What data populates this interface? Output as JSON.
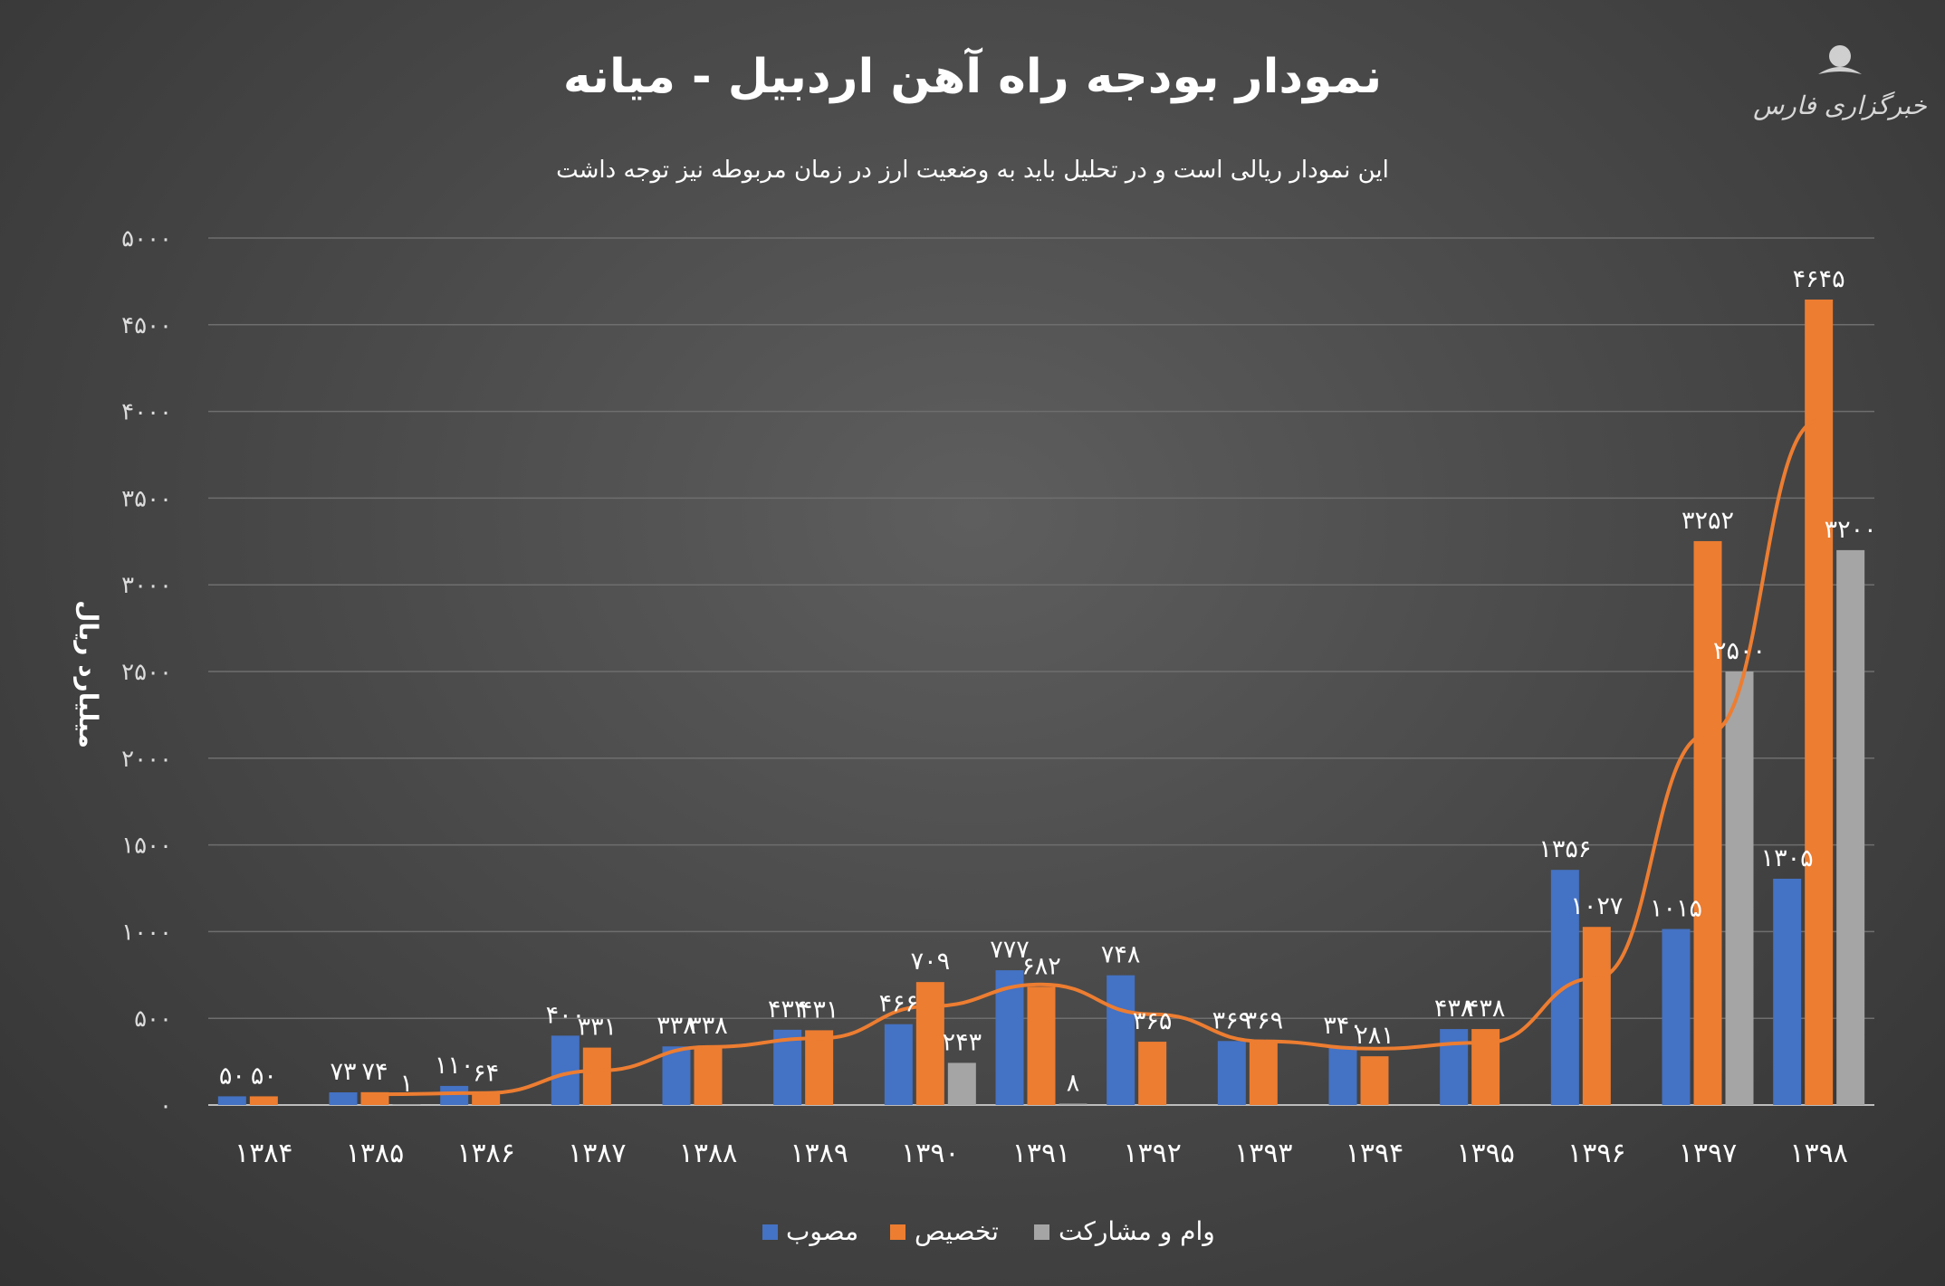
{
  "title": "نمودار بودجه راه آهن اردبیل - میانه",
  "subtitle": "این نمودار ریالی است و در تحلیل باید به وضعیت ارز در زمان مربوطه نیز توجه داشت",
  "logo_text": "خبرگزاری فارس",
  "colors": {
    "approved": "#4472c4",
    "allocated": "#ed7d31",
    "loan": "#a5a5a5",
    "trend": "#ed7d31",
    "grid": "#6e6e6e"
  },
  "chart_data": {
    "type": "bar",
    "title": "نمودار بودجه راه آهن اردبیل - میانه",
    "ylabel": "میلیارد ریال",
    "xlabel": "",
    "ylim": [
      0,
      5000
    ],
    "ytick_values": [
      0,
      500,
      1000,
      1500,
      2000,
      2500,
      3000,
      3500,
      4000,
      4500,
      5000
    ],
    "ytick_labels": [
      "۰",
      "۵۰۰",
      "۱۰۰۰",
      "۱۵۰۰",
      "۲۰۰۰",
      "۲۵۰۰",
      "۳۰۰۰",
      "۳۵۰۰",
      "۴۰۰۰",
      "۴۵۰۰",
      "۵۰۰۰"
    ],
    "categories": [
      "۱۳۸۴",
      "۱۳۸۵",
      "۱۳۸۶",
      "۱۳۸۷",
      "۱۳۸۸",
      "۱۳۸۹",
      "۱۳۹۰",
      "۱۳۹۱",
      "۱۳۹۲",
      "۱۳۹۳",
      "۱۳۹۴",
      "۱۳۹۵",
      "۱۳۹۶",
      "۱۳۹۷",
      "۱۳۹۸"
    ],
    "series": [
      {
        "name": "مصوب",
        "color": "#4472c4",
        "values": [
          50,
          73,
          110,
          400,
          338,
          434,
          466,
          777,
          748,
          369,
          340,
          438,
          1356,
          1015,
          1305
        ],
        "labels": [
          "۵۰",
          "۷۳",
          "۱۱۰",
          "۴۰۰",
          "۳۳۸",
          "۴۳۴",
          "۴۶۶",
          "۷۷۷",
          "۷۴۸",
          "۳۶۹",
          "۳۴۰",
          "۴۳۸",
          "۱۳۵۶",
          "۱۰۱۵",
          "۱۳۰۵"
        ]
      },
      {
        "name": "تخصیص",
        "color": "#ed7d31",
        "values": [
          50,
          74,
          64,
          331,
          338,
          431,
          709,
          682,
          365,
          369,
          281,
          438,
          1027,
          3252,
          4645
        ],
        "labels": [
          "۵۰",
          "۷۴",
          "۶۴",
          "۳۳۱",
          "۳۳۸",
          "۴۳۱",
          "۷۰۹",
          "۶۸۲",
          "۳۶۵",
          "۳۶۹",
          "۲۸۱",
          "۴۳۸",
          "۱۰۲۷",
          "۳۲۵۲",
          "۴۶۴۵"
        ]
      },
      {
        "name": "وام و مشارکت",
        "color": "#a5a5a5",
        "values": [
          null,
          1,
          null,
          null,
          null,
          null,
          243,
          8,
          null,
          null,
          null,
          null,
          null,
          2500,
          3200
        ],
        "labels": [
          "",
          "۱",
          "",
          "",
          "",
          "",
          "۲۴۳",
          "۸",
          "",
          "",
          "",
          "",
          "",
          "۲۵۰۰",
          "۳۲۰۰"
        ]
      }
    ],
    "trendline": {
      "series": "تخصیص",
      "type": "moving-average",
      "color": "#ed7d31"
    },
    "legend_position": "bottom",
    "grid": true
  }
}
